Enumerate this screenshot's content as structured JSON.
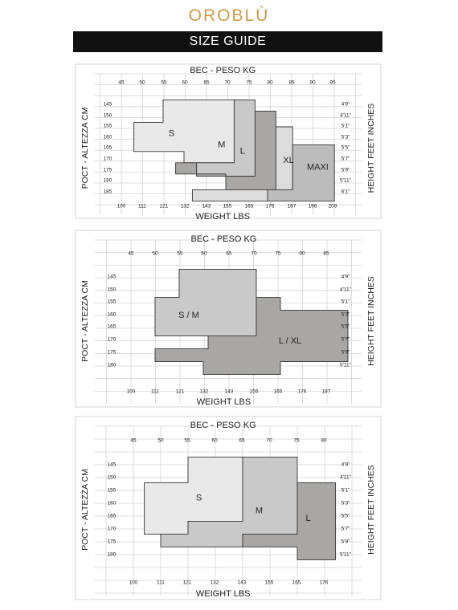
{
  "brand": {
    "logo_text": "OROBLÙ"
  },
  "header": {
    "banner": "SIZE GUIDE"
  },
  "colors": {
    "logo": "#c99a4e",
    "banner_bg": "#111111",
    "grid": "#d4d4d4",
    "s": "#e9e9e9",
    "m": "#c9c9c9",
    "l": "#a9a7a5",
    "xl": "#dcdcdc",
    "maxi": "#bcbcbc",
    "outline": "#333333"
  },
  "chart_data": [
    {
      "type": "table",
      "title": "BEC - PESO KG",
      "xlabel": "WEIGHT LBS",
      "ylabel_left": "POCT - ALTEZZA CM",
      "ylabel_right": "HEIGHT FEET INCHES",
      "kg": [
        "45",
        "50",
        "55",
        "60",
        "65",
        "70",
        "75",
        "80",
        "85",
        "90",
        "95"
      ],
      "lbs": [
        "100",
        "111",
        "121",
        "132",
        "143",
        "155",
        "165",
        "176",
        "187",
        "198",
        "209"
      ],
      "cm": [
        "145",
        "150",
        "155",
        "160",
        "165",
        "170",
        "175",
        "180",
        "185"
      ],
      "ft": [
        "4'9\"",
        "4'11\"",
        "5'1\"",
        "5'3\"",
        "5'5\"",
        "5'7\"",
        "5'9\"",
        "5'11\"",
        "6'1\""
      ],
      "sizes": [
        {
          "name": "S",
          "label_kg": 57,
          "label_cm": 158,
          "kg_range": [
            50,
            70
          ],
          "cm_range": [
            145,
            175
          ]
        },
        {
          "name": "M",
          "label_kg": 69,
          "label_cm": 163,
          "kg_range": [
            55,
            75
          ],
          "cm_range": [
            145,
            178
          ]
        },
        {
          "name": "L",
          "label_kg": 74,
          "label_cm": 166,
          "kg_range": [
            58,
            80
          ],
          "cm_range": [
            148,
            178
          ]
        },
        {
          "name": "XL",
          "label_kg": 85,
          "label_cm": 170,
          "kg_range": [
            60,
            90
          ],
          "cm_range": [
            155,
            183
          ]
        },
        {
          "name": "MAXI",
          "label_kg": 92,
          "label_cm": 173,
          "kg_range": [
            62,
            95
          ],
          "cm_range": [
            165,
            185
          ]
        }
      ]
    },
    {
      "type": "table",
      "title": "BEC - PESO KG",
      "xlabel": "WEIGHT LBS",
      "ylabel_left": "POCT - ALTEZZA CM",
      "ylabel_right": "HEIGHT FEET INCHES",
      "kg": [
        "45",
        "50",
        "55",
        "60",
        "65",
        "70",
        "75",
        "80",
        "85"
      ],
      "lbs": [
        "100",
        "111",
        "121",
        "132",
        "143",
        "155",
        "165",
        "176",
        "187"
      ],
      "cm": [
        "145",
        "150",
        "155",
        "160",
        "165",
        "170",
        "175",
        "180"
      ],
      "ft": [
        "4'9\"",
        "4'11\"",
        "5'1\"",
        "5'3\"",
        "5'5\"",
        "5'7\"",
        "5'9\"",
        "5'11\""
      ],
      "sizes": [
        {
          "name": "S / M",
          "label_kg": 57,
          "label_cm": 160,
          "kg_range": [
            47,
            70
          ],
          "cm_range": [
            145,
            175
          ]
        },
        {
          "name": "L / XL",
          "label_kg": 78,
          "label_cm": 170,
          "kg_range": [
            52,
            90
          ],
          "cm_range": [
            155,
            180
          ]
        }
      ]
    },
    {
      "type": "table",
      "title": "BEC - PESO KG",
      "xlabel": "WEIGHT LBS",
      "ylabel_left": "POCT - ALTEZZA CM",
      "ylabel_right": "HEIGHT FEET INCHES",
      "kg": [
        "45",
        "50",
        "55",
        "60",
        "65",
        "70",
        "75",
        "80"
      ],
      "lbs": [
        "100",
        "111",
        "121",
        "132",
        "143",
        "155",
        "165",
        "176"
      ],
      "cm": [
        "145",
        "150",
        "155",
        "160",
        "165",
        "170",
        "175",
        "180"
      ],
      "ft": [
        "4'9\"",
        "4'11\"",
        "5'1\"",
        "5'3\"",
        "5'5\"",
        "5'7\"",
        "5'9\"",
        "5'11\""
      ],
      "sizes": [
        {
          "name": "S",
          "label_kg": 57,
          "label_cm": 158,
          "kg_range": [
            48,
            65
          ],
          "cm_range": [
            145,
            175
          ]
        },
        {
          "name": "M",
          "label_kg": 68,
          "label_cm": 163,
          "kg_range": [
            50,
            70
          ],
          "cm_range": [
            145,
            180
          ]
        },
        {
          "name": "L",
          "label_kg": 77,
          "label_cm": 166,
          "kg_range": [
            55,
            80
          ],
          "cm_range": [
            155,
            180
          ]
        }
      ]
    }
  ]
}
